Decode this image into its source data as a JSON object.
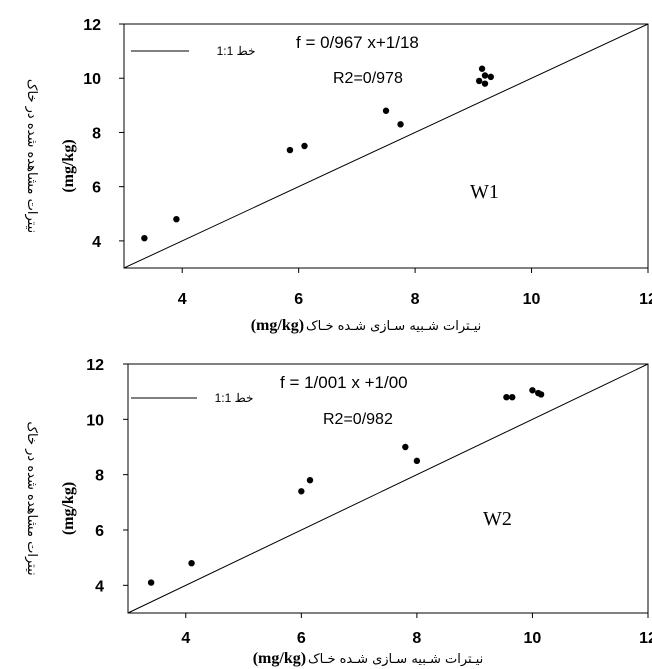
{
  "chart_data": [
    {
      "type": "scatter",
      "id_label": "W1",
      "equation": "f = 0/967 x+1/18",
      "r2": "R2=0/978",
      "legend_label": "خط 1:1",
      "xlabel_fa": "نیـترات شـبیه سـازی شـده خـاک",
      "xlabel_unit": "(mg/kg)",
      "ylabel_fa": "نیترات مشاهده شده در خاک",
      "ylabel_unit": "(mg/kg)",
      "xlim": [
        3,
        12
      ],
      "ylim": [
        3,
        12
      ],
      "xticks": [
        4,
        6,
        8,
        10,
        12
      ],
      "yticks": [
        4,
        6,
        8,
        10,
        12
      ],
      "points": [
        {
          "x": 3.35,
          "y": 4.1
        },
        {
          "x": 3.9,
          "y": 4.8
        },
        {
          "x": 5.85,
          "y": 7.35
        },
        {
          "x": 6.1,
          "y": 7.5
        },
        {
          "x": 7.5,
          "y": 8.8
        },
        {
          "x": 7.75,
          "y": 8.3
        },
        {
          "x": 9.1,
          "y": 9.9
        },
        {
          "x": 9.2,
          "y": 9.8
        },
        {
          "x": 9.2,
          "y": 10.1
        },
        {
          "x": 9.3,
          "y": 10.05
        },
        {
          "x": 9.15,
          "y": 10.35
        }
      ],
      "reference_line": [
        [
          3,
          3
        ],
        [
          12,
          12
        ]
      ]
    },
    {
      "type": "scatter",
      "id_label": "W2",
      "equation": "f = 1/001 x +1/00",
      "r2": "R2=0/982",
      "legend_label": "خط 1:1",
      "xlabel_fa": "نیـترات شـبیه سـازی شـده خـاک",
      "xlabel_unit": "(mg/kg)",
      "ylabel_fa": "نیترات مشاهده شده در خاک",
      "ylabel_unit": "(mg/kg)",
      "xlim": [
        3,
        12
      ],
      "ylim": [
        3,
        12
      ],
      "xticks": [
        4,
        6,
        8,
        10,
        12
      ],
      "yticks": [
        4,
        6,
        8,
        10,
        12
      ],
      "points": [
        {
          "x": 3.4,
          "y": 4.1
        },
        {
          "x": 4.1,
          "y": 4.8
        },
        {
          "x": 6.0,
          "y": 7.4
        },
        {
          "x": 6.15,
          "y": 7.8
        },
        {
          "x": 7.8,
          "y": 9.0
        },
        {
          "x": 8.0,
          "y": 8.5
        },
        {
          "x": 9.55,
          "y": 10.8
        },
        {
          "x": 9.65,
          "y": 10.8
        },
        {
          "x": 10.0,
          "y": 11.05
        },
        {
          "x": 10.1,
          "y": 10.95
        },
        {
          "x": 10.15,
          "y": 10.9
        }
      ],
      "reference_line": [
        [
          3,
          3
        ],
        [
          12,
          12
        ]
      ]
    }
  ]
}
